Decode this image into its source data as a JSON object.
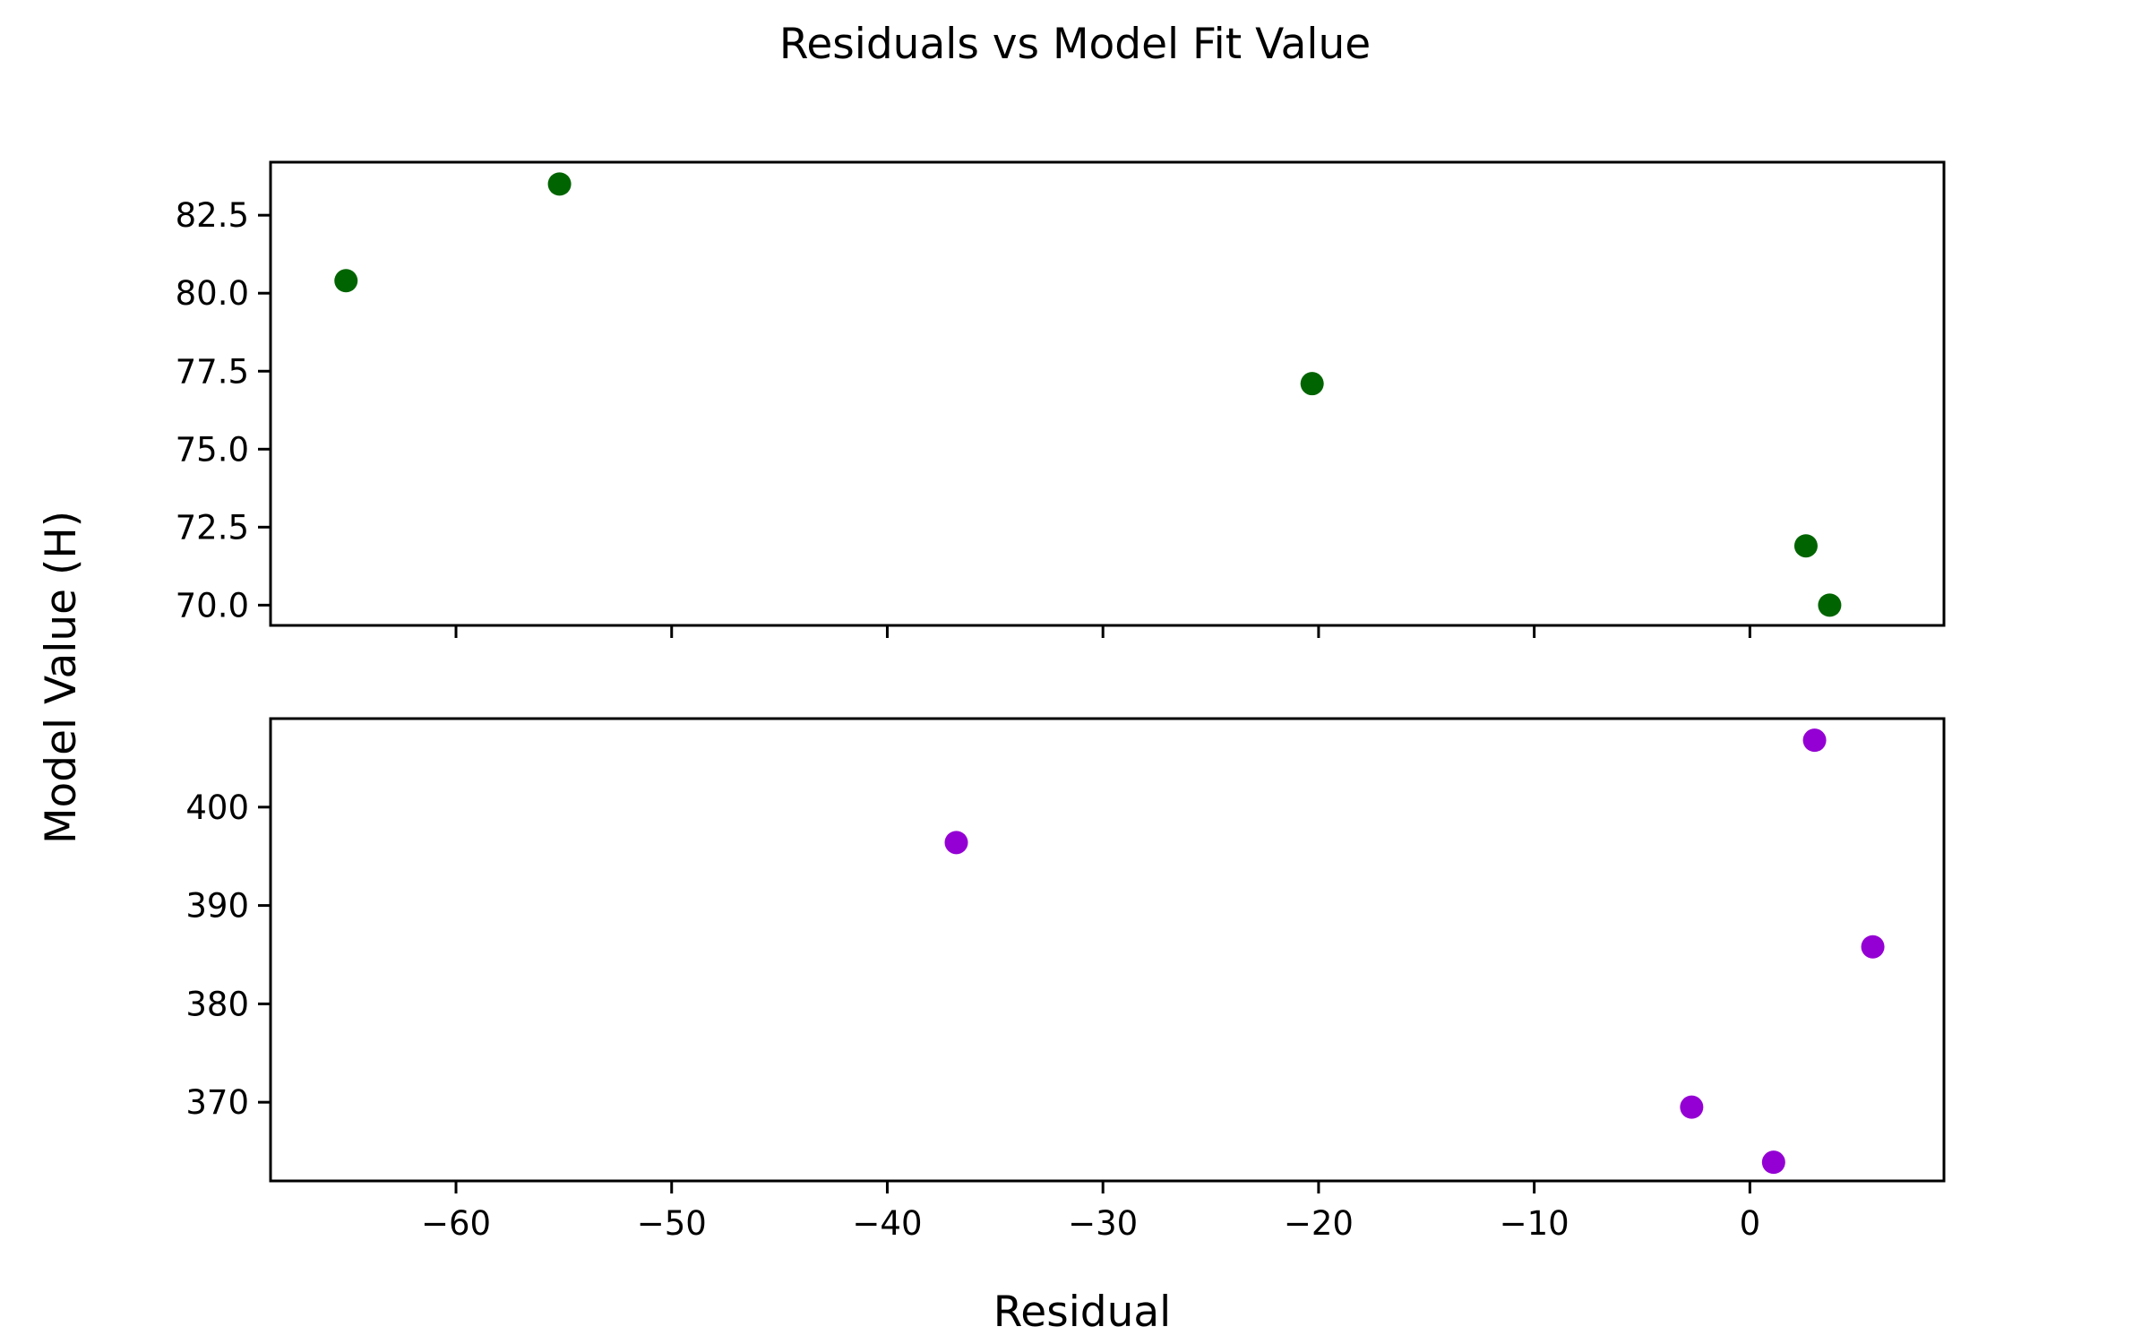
{
  "figure": {
    "title": "Residuals vs Model Fit Value",
    "xlabel": "Residual",
    "ylabel": "Model Value (H)"
  },
  "chart_data": {
    "type": "scatter",
    "title": "Residuals vs Model Fit Value",
    "xlabel": "Residual",
    "ylabel": "Model Value (H)",
    "sharex": true,
    "grid": false,
    "xlim": [
      -68.6,
      9.0
    ],
    "xticks": [
      -60,
      -50,
      -40,
      -30,
      -20,
      -10,
      0
    ],
    "xtick_labels": [
      "−60",
      "−50",
      "−40",
      "−30",
      "−20",
      "−10",
      "0"
    ],
    "subplots": [
      {
        "position": "top",
        "color": "#006400",
        "ylim": [
          69.35,
          84.2
        ],
        "yticks": [
          70.0,
          72.5,
          75.0,
          77.5,
          80.0,
          82.5
        ],
        "ytick_labels": [
          "70.0",
          "72.5",
          "75.0",
          "77.5",
          "80.0",
          "82.5"
        ],
        "show_xtick_labels": false,
        "points": [
          {
            "x": -65.1,
            "y": 80.4
          },
          {
            "x": -55.2,
            "y": 83.5
          },
          {
            "x": -20.3,
            "y": 77.1
          },
          {
            "x": 2.6,
            "y": 71.9
          },
          {
            "x": 3.7,
            "y": 70.0
          }
        ]
      },
      {
        "position": "bottom",
        "color": "#9400D3",
        "ylim": [
          362.0,
          409.0
        ],
        "yticks": [
          370,
          380,
          390,
          400
        ],
        "ytick_labels": [
          "370",
          "380",
          "390",
          "400"
        ],
        "show_xtick_labels": true,
        "points": [
          {
            "x": -36.8,
            "y": 396.4
          },
          {
            "x": -2.7,
            "y": 369.5
          },
          {
            "x": 1.1,
            "y": 363.9
          },
          {
            "x": 3.0,
            "y": 406.8
          },
          {
            "x": 5.7,
            "y": 385.8
          }
        ]
      }
    ]
  }
}
